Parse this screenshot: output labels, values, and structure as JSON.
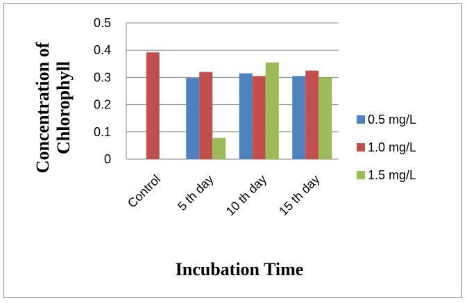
{
  "chart_data": {
    "type": "bar",
    "categories": [
      "Control",
      "5 th day",
      "10 th day",
      "15 th day"
    ],
    "series": [
      {
        "name": "0.5 mg/L",
        "color": "#4F81BD",
        "values": [
          null,
          0.298,
          0.315,
          0.305
        ]
      },
      {
        "name": "1.0 mg/L",
        "color": "#C0504D",
        "values": [
          0.392,
          0.32,
          0.305,
          0.325
        ]
      },
      {
        "name": "1.5 mg/L",
        "color": "#9BBB59",
        "values": [
          null,
          0.078,
          0.355,
          0.3
        ]
      }
    ],
    "ylim": [
      0,
      0.5
    ],
    "yticks": [
      "0",
      "0.1",
      "0.2",
      "0.3",
      "0.4",
      "0.5"
    ],
    "xlabel": "Incubation Time",
    "ylabel_lines": [
      "Concentration of",
      "Chlorophyll"
    ],
    "grid": true,
    "legend_position": "right"
  }
}
